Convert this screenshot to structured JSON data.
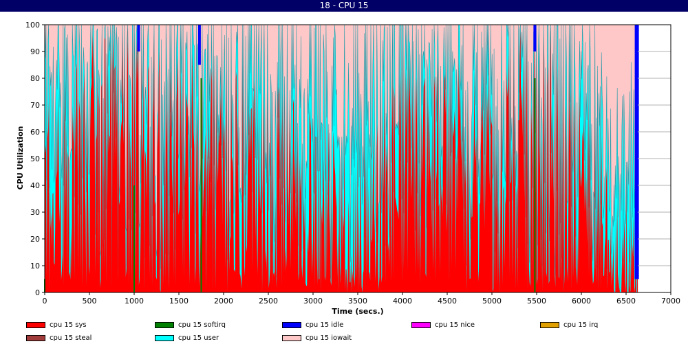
{
  "window": {
    "title": "18 - CPU 15"
  },
  "chart_data": {
    "type": "area",
    "stacked": true,
    "xlabel": "Time (secs.)",
    "ylabel": "CPU Utilization",
    "xlim": [
      0,
      7000
    ],
    "ylim": [
      0,
      100
    ],
    "xticks": [
      0,
      500,
      1000,
      1500,
      2000,
      2500,
      3000,
      3500,
      4000,
      4500,
      5000,
      5500,
      6000,
      6500,
      7000
    ],
    "yticks": [
      0,
      10,
      20,
      30,
      40,
      50,
      60,
      70,
      80,
      90,
      100
    ],
    "grid": "horizontal",
    "legend_position": "bottom",
    "data_end_time": 6630,
    "series": [
      {
        "name": "cpu 15 sys",
        "color": "#ff0000",
        "approx_values_by_x": {
          "x": [
            0,
            500,
            1000,
            1500,
            2000,
            2500,
            3000,
            3500,
            4000,
            4500,
            5000,
            5500,
            6000,
            6500
          ],
          "y": [
            40,
            62,
            70,
            60,
            55,
            45,
            35,
            30,
            60,
            55,
            58,
            70,
            55,
            10
          ]
        }
      },
      {
        "name": "cpu 15 softirq",
        "color": "#008000",
        "approx_values_by_x": {
          "x": [
            0,
            1000,
            1750,
            5480
          ],
          "y": [
            5,
            40,
            80,
            80
          ]
        }
      },
      {
        "name": "cpu 15 idle",
        "color": "#0000ff",
        "approx_values_by_x": {
          "x": [
            1050,
            1730,
            5480,
            6620
          ],
          "y": [
            10,
            15,
            10,
            95
          ]
        }
      },
      {
        "name": "cpu 15 nice",
        "color": "#ff00ff",
        "approx_values_by_x": {
          "x": [
            0,
            6630
          ],
          "y": [
            0,
            0
          ]
        }
      },
      {
        "name": "cpu 15 irq",
        "color": "#e0a000",
        "approx_values_by_x": {
          "x": [
            0,
            6630
          ],
          "y": [
            0,
            0
          ]
        }
      },
      {
        "name": "cpu 15 steal",
        "color": "#a03c3c",
        "approx_values_by_x": {
          "x": [
            0,
            6630
          ],
          "y": [
            0,
            0
          ]
        }
      },
      {
        "name": "cpu 15 user",
        "color": "#00ffff",
        "approx_values_by_x": {
          "x": [
            0,
            500,
            1000,
            1500,
            2000,
            2500,
            3000,
            3500,
            4000,
            4500,
            5000,
            5500,
            6000,
            6500
          ],
          "y": [
            45,
            25,
            20,
            28,
            33,
            40,
            45,
            48,
            28,
            32,
            30,
            20,
            33,
            40
          ]
        }
      },
      {
        "name": "cpu 15 iowait",
        "color": "#ffc8c8",
        "approx_values_by_x": {
          "x": [
            0,
            500,
            1000,
            1500,
            2000,
            2500,
            3000,
            3500,
            4000,
            4500,
            5000,
            5500,
            6000,
            6500
          ],
          "y": [
            15,
            13,
            10,
            12,
            12,
            15,
            20,
            22,
            12,
            13,
            12,
            10,
            12,
            50
          ]
        }
      }
    ]
  }
}
